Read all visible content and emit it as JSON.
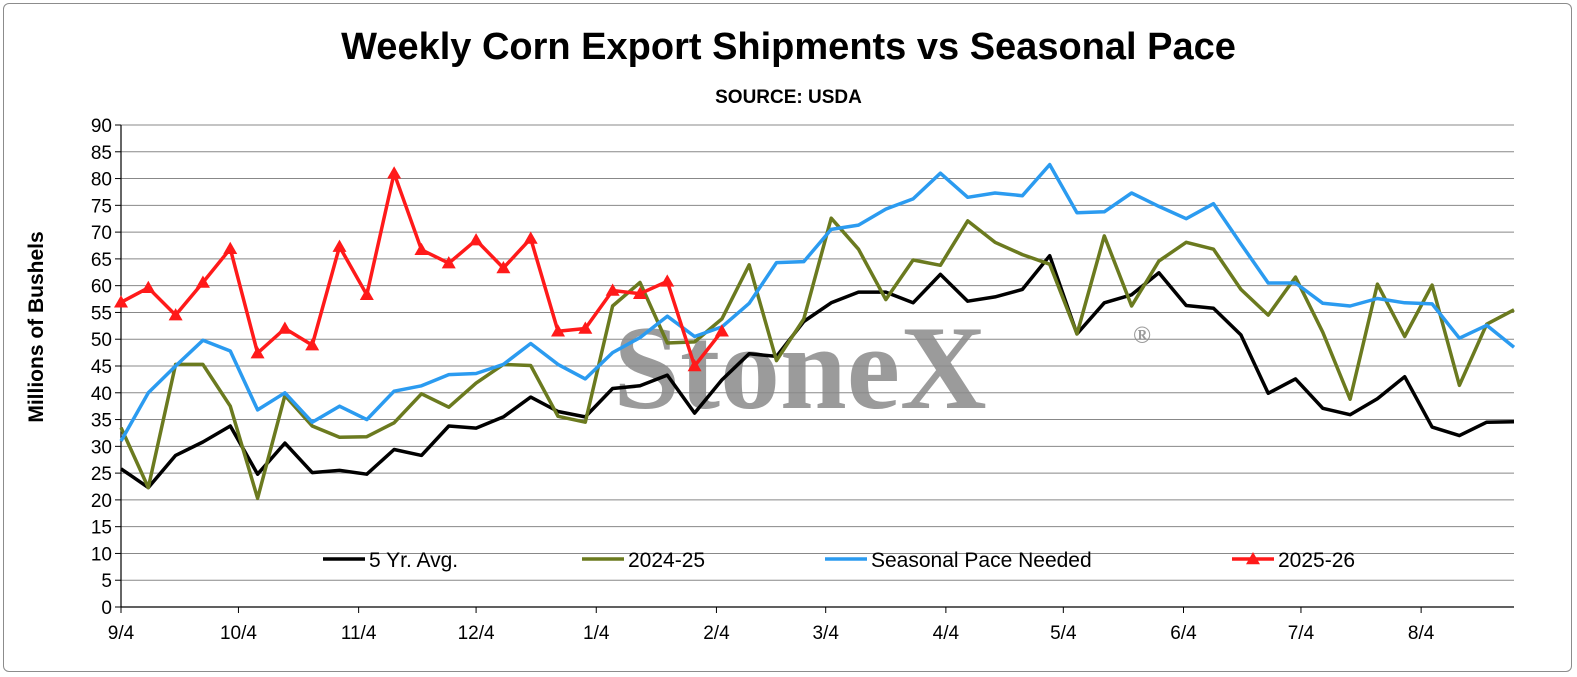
{
  "colors": {
    "five_yr_avg": "#000000",
    "y2024_25": "#6b7a1f",
    "seasonal_pace": "#2b9bf0",
    "y2025_26": "#ff1a1a",
    "grid": "#888888"
  },
  "watermark": {
    "text": "StoneX",
    "mark": "®"
  },
  "chart_data": {
    "type": "line",
    "title": "Weekly Corn Export Shipments vs Seasonal Pace",
    "subtitle": "SOURCE: USDA",
    "ylabel": "Millions of Bushels",
    "xlabel": "",
    "ylim": [
      0,
      90
    ],
    "ystep": 5,
    "grid": true,
    "legend_position": "bottom-inside",
    "x_tick_labels": [
      {
        "label": "9/4",
        "week": 0
      },
      {
        "label": "10/4",
        "week": 4.3
      },
      {
        "label": "11/4",
        "week": 8.7
      },
      {
        "label": "12/4",
        "week": 13
      },
      {
        "label": "1/4",
        "week": 17.4
      },
      {
        "label": "2/4",
        "week": 21.8
      },
      {
        "label": "3/4",
        "week": 25.8
      },
      {
        "label": "4/4",
        "week": 30.2
      },
      {
        "label": "5/4",
        "week": 34.5
      },
      {
        "label": "6/4",
        "week": 38.9
      },
      {
        "label": "7/4",
        "week": 43.2
      },
      {
        "label": "8/4",
        "week": 47.6
      }
    ],
    "series": [
      {
        "name": "5 Yr. Avg.",
        "color_key": "five_yr_avg",
        "marker": "none",
        "values": [
          25.8,
          22.3,
          28.3,
          30.8,
          33.8,
          24.8,
          30.6,
          25.1,
          25.5,
          24.8,
          29.4,
          28.3,
          33.8,
          33.4,
          35.5,
          39.2,
          36.5,
          35.5,
          40.8,
          41.3,
          43.3,
          36.2,
          42.4,
          47.3,
          46.8,
          53.3,
          56.8,
          58.8,
          58.8,
          56.8,
          62.1,
          57.1,
          57.9,
          59.3,
          65.6,
          51.0,
          56.8,
          58.3,
          62.4,
          56.3,
          55.8,
          50.8,
          39.9,
          42.6,
          37.1,
          35.9,
          38.9,
          43.0,
          33.6,
          32.0,
          34.5,
          34.6
        ]
      },
      {
        "name": "2024-25",
        "color_key": "y2024_25",
        "marker": "none",
        "values": [
          33.5,
          22.3,
          45.3,
          45.3,
          37.5,
          20.3,
          39.5,
          33.8,
          31.7,
          31.8,
          34.4,
          39.8,
          37.3,
          41.8,
          45.3,
          45.1,
          35.6,
          34.5,
          56.2,
          60.6,
          49.3,
          49.5,
          53.8,
          63.9,
          46.0,
          53.8,
          72.6,
          66.8,
          57.4,
          64.8,
          63.8,
          72.1,
          68.1,
          65.8,
          64.0,
          51.0,
          69.3,
          56.2,
          64.6,
          68.1,
          66.8,
          59.3,
          54.5,
          61.6,
          51.3,
          38.8,
          60.3,
          50.5,
          60.1,
          41.4,
          52.8,
          55.5
        ]
      },
      {
        "name": "Seasonal Pace Needed",
        "color_key": "seasonal_pace",
        "marker": "none",
        "values": [
          31.0,
          40.0,
          45.0,
          49.8,
          47.8,
          36.8,
          40.0,
          34.5,
          37.5,
          35.0,
          40.3,
          41.3,
          43.4,
          43.6,
          45.3,
          49.2,
          45.3,
          42.6,
          47.5,
          50.3,
          54.3,
          50.5,
          52.3,
          56.7,
          64.3,
          64.5,
          70.5,
          71.3,
          74.3,
          76.2,
          81.0,
          76.5,
          77.3,
          76.8,
          82.6,
          73.6,
          73.8,
          77.3,
          74.8,
          72.5,
          75.3,
          67.8,
          60.5,
          60.5,
          56.7,
          56.2,
          57.6,
          56.8,
          56.6,
          50.2,
          52.6,
          48.5
        ]
      },
      {
        "name": "2025-26",
        "color_key": "y2025_26",
        "marker": "triangle",
        "values": [
          56.9,
          59.6,
          54.5,
          60.6,
          66.9,
          47.4,
          52.0,
          48.9,
          67.3,
          58.3,
          81.0,
          66.7,
          64.2,
          68.5,
          63.3,
          68.8,
          51.5,
          52.0,
          59.1,
          58.5,
          60.8,
          45.0,
          51.5
        ]
      }
    ]
  }
}
